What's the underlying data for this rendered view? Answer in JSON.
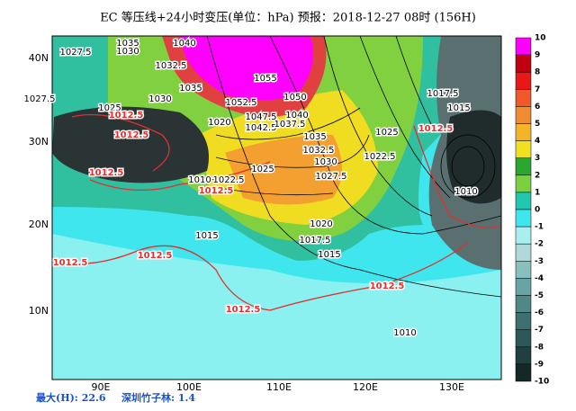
{
  "title": "EC  等压线+24小时变压(单位：hPa)    预报：2018-12-27 08时 (156H)",
  "lat_labels": [
    "40N",
    "30N",
    "20N",
    "10N"
  ],
  "lon_labels": [
    "90E",
    "100E",
    "110E",
    "120E",
    "130E"
  ],
  "colorbar": {
    "levels": [
      10,
      9,
      8,
      7,
      6,
      5,
      4,
      3,
      2,
      1,
      0,
      -1,
      -2,
      -3,
      -4,
      -5,
      -6,
      -7,
      -8,
      -9,
      -10
    ],
    "colors": [
      "#ff00ff",
      "#c00010",
      "#e81818",
      "#f05a28",
      "#f08c30",
      "#f4b428",
      "#f0e020",
      "#28a830",
      "#7cd040",
      "#20c8b0",
      "#40e6ee",
      "#a8f0f0",
      "#b0d8d8",
      "#88c0c0",
      "#68a4a4",
      "#508888",
      "#3c7070",
      "#2c5858",
      "#204040",
      "#142828"
    ]
  },
  "isobar_labels": [
    "1035",
    "1027.5",
    "1030",
    "1032.5",
    "1040",
    "1035",
    "1055",
    "1027.5",
    "1025",
    "1030",
    "1052.5",
    "1050",
    "1040",
    "1047.5",
    "1020",
    "1042.5",
    "1037.5",
    "1035",
    "1032.5",
    "1030",
    "1025",
    "1022.5",
    "1027.5",
    "1025",
    "1010",
    "1022.5",
    "1015",
    "1020",
    "1017.5",
    "1015",
    "1017.5",
    "1015",
    "1010",
    "1010"
  ],
  "change_labels": [
    "1012.5",
    "1012.5",
    "1012.5",
    "1012.5",
    "1012.5",
    "1012.5",
    "1012.5",
    "1012.5"
  ],
  "footer": {
    "max": "最大(H): 22.6",
    "station": "深圳竹子林: 1.4"
  }
}
